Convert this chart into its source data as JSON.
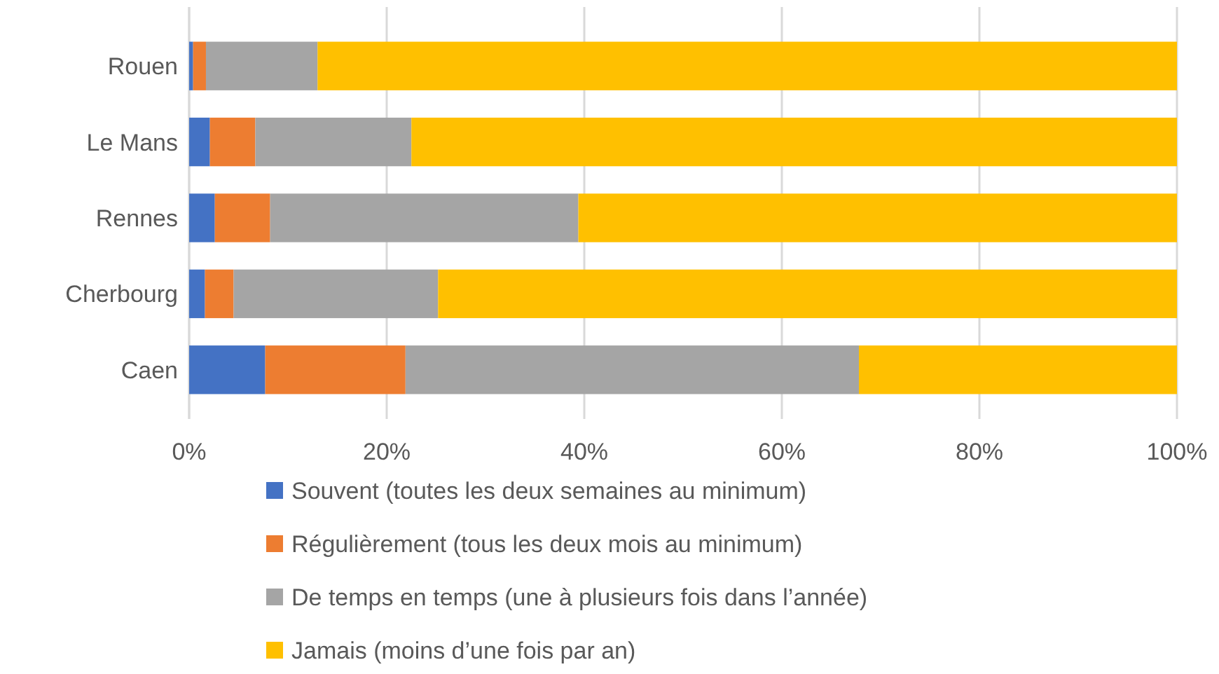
{
  "chart_data": {
    "type": "bar",
    "orientation": "horizontal",
    "stacked": true,
    "categories": [
      "Rouen",
      "Le Mans",
      "Rennes",
      "Cherbourg",
      "Caen"
    ],
    "series": [
      {
        "name": "Souvent (toutes les deux semaines au minimum)",
        "color": "#4472c4",
        "values": [
          0.4,
          2.1,
          2.6,
          1.6,
          7.7
        ]
      },
      {
        "name": "Régulièrement (tous les deux mois au minimum)",
        "color": "#ed7d31",
        "values": [
          1.3,
          4.6,
          5.6,
          2.9,
          14.2
        ]
      },
      {
        "name": "De temps en temps (une à plusieurs fois dans l’année)",
        "color": "#a5a5a5",
        "values": [
          11.3,
          15.8,
          31.2,
          20.7,
          45.9
        ]
      },
      {
        "name": "Jamais (moins d’une fois par an)",
        "color": "#ffc000",
        "values": [
          87.0,
          77.5,
          60.6,
          74.8,
          32.2
        ]
      }
    ],
    "xlim": [
      0,
      100
    ],
    "xticks": [
      {
        "value": 0,
        "label": "0%"
      },
      {
        "value": 20,
        "label": "20%"
      },
      {
        "value": 40,
        "label": "40%"
      },
      {
        "value": 60,
        "label": "60%"
      },
      {
        "value": 80,
        "label": "80%"
      },
      {
        "value": 100,
        "label": "100%"
      }
    ],
    "grid": "x",
    "legend": "bottom"
  }
}
